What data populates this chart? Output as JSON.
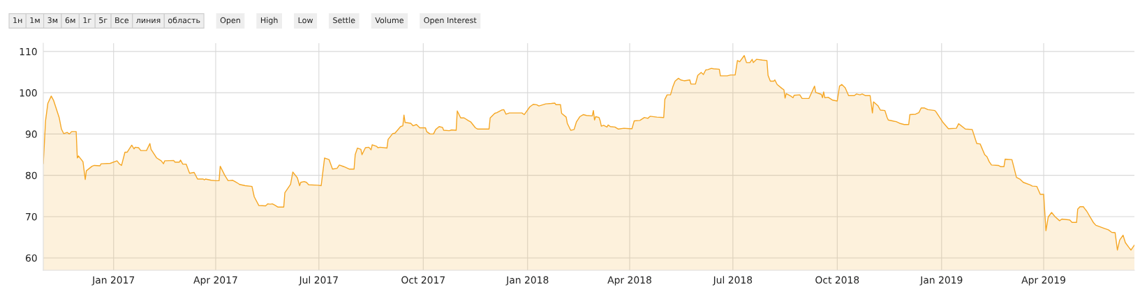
{
  "chart_data": {
    "type": "area",
    "annotations": [
      "1н",
      "1м",
      "3м",
      "6м",
      "1г",
      "5г",
      "Все",
      "линия",
      "область",
      "Open",
      "High",
      "Low",
      "Settle",
      "Volume",
      "Open Interest"
    ],
    "xlim": [
      "2016-10-31",
      "2019-06-20"
    ],
    "xticks": [
      {
        "value": "2017-01-01",
        "label": "Jan 2017"
      },
      {
        "value": "2017-04-01",
        "label": "Apr 2017"
      },
      {
        "value": "2017-07-01",
        "label": "Jul 2017"
      },
      {
        "value": "2017-10-01",
        "label": "Oct 2017"
      },
      {
        "value": "2018-01-01",
        "label": "Jan 2018"
      },
      {
        "value": "2018-04-01",
        "label": "Apr 2018"
      },
      {
        "value": "2018-07-01",
        "label": "Jul 2018"
      },
      {
        "value": "2018-10-01",
        "label": "Oct 2018"
      },
      {
        "value": "2019-01-01",
        "label": "Jan 2019"
      },
      {
        "value": "2019-04-01",
        "label": "Apr 2019"
      }
    ],
    "ylim": [
      57,
      112
    ],
    "yticks": [
      60,
      70,
      80,
      90,
      100,
      110
    ],
    "grid": true,
    "series": [
      {
        "color": "#f5a623",
        "x": [
          "2016-10-31",
          "2016-11-02",
          "2016-11-04",
          "2016-11-07",
          "2016-11-09",
          "2016-11-14",
          "2016-11-16",
          "2016-11-18",
          "2016-11-21",
          "2016-11-23",
          "2016-11-25",
          "2016-11-29",
          "2016-11-30",
          "2016-12-01",
          "2016-12-05",
          "2016-12-07",
          "2016-12-08",
          "2016-12-13",
          "2016-12-15",
          "2016-12-20",
          "2016-12-21",
          "2016-12-29",
          "2017-01-04",
          "2017-01-06",
          "2017-01-08",
          "2017-01-11",
          "2017-01-13",
          "2017-01-17",
          "2017-01-19",
          "2017-01-20",
          "2017-01-23",
          "2017-01-25",
          "2017-01-30",
          "2017-02-02",
          "2017-02-03",
          "2017-02-08",
          "2017-02-12",
          "2017-02-14",
          "2017-02-15",
          "2017-02-23",
          "2017-02-24",
          "2017-02-28",
          "2017-03-01",
          "2017-03-03",
          "2017-03-06",
          "2017-03-09",
          "2017-03-13",
          "2017-03-16",
          "2017-03-21",
          "2017-03-22",
          "2017-03-23",
          "2017-03-28",
          "2017-04-01",
          "2017-04-04",
          "2017-04-05",
          "2017-04-09",
          "2017-04-12",
          "2017-04-16",
          "2017-04-18",
          "2017-04-21",
          "2017-04-22",
          "2017-04-27",
          "2017-05-03",
          "2017-05-05",
          "2017-05-09",
          "2017-05-15",
          "2017-05-17",
          "2017-05-19",
          "2017-05-21",
          "2017-05-23",
          "2017-05-26",
          "2017-05-31",
          "2017-06-01",
          "2017-06-06",
          "2017-06-08",
          "2017-06-12",
          "2017-06-14",
          "2017-06-15",
          "2017-06-18",
          "2017-06-20",
          "2017-06-22",
          "2017-06-30",
          "2017-07-03",
          "2017-07-06",
          "2017-07-10",
          "2017-07-13",
          "2017-07-17",
          "2017-07-19",
          "2017-07-23",
          "2017-07-28",
          "2017-08-01",
          "2017-08-02",
          "2017-08-04",
          "2017-08-07",
          "2017-08-08",
          "2017-08-11",
          "2017-08-14",
          "2017-08-16",
          "2017-08-17",
          "2017-08-21",
          "2017-08-22",
          "2017-08-24",
          "2017-08-30",
          "2017-08-31",
          "2017-09-04",
          "2017-09-06",
          "2017-09-11",
          "2017-09-13",
          "2017-09-14",
          "2017-09-15",
          "2017-09-20",
          "2017-09-22",
          "2017-09-25",
          "2017-09-28",
          "2017-10-03",
          "2017-10-04",
          "2017-10-07",
          "2017-10-10",
          "2017-10-12",
          "2017-10-15",
          "2017-10-18",
          "2017-10-19",
          "2017-10-24",
          "2017-10-26",
          "2017-10-30",
          "2017-10-31",
          "2017-11-03",
          "2017-11-06",
          "2017-11-10",
          "2017-11-12",
          "2017-11-16",
          "2017-11-18",
          "2017-11-28",
          "2017-11-29",
          "2017-12-03",
          "2017-12-05",
          "2017-12-09",
          "2017-12-11",
          "2017-12-13",
          "2017-12-16",
          "2017-12-27",
          "2017-12-29",
          "2018-01-03",
          "2018-01-06",
          "2018-01-09",
          "2018-01-11",
          "2018-01-17",
          "2018-01-22",
          "2018-01-25",
          "2018-01-26",
          "2018-01-30",
          "2018-01-31",
          "2018-02-04",
          "2018-02-05",
          "2018-02-08",
          "2018-02-11",
          "2018-02-13",
          "2018-02-16",
          "2018-02-19",
          "2018-02-22",
          "2018-02-27",
          "2018-02-28",
          "2018-03-01",
          "2018-03-02",
          "2018-03-05",
          "2018-03-06",
          "2018-03-07",
          "2018-03-09",
          "2018-03-12",
          "2018-03-13",
          "2018-03-15",
          "2018-03-19",
          "2018-03-22",
          "2018-03-27",
          "2018-04-01",
          "2018-04-03",
          "2018-04-05",
          "2018-04-10",
          "2018-04-14",
          "2018-04-17",
          "2018-04-19",
          "2018-04-25",
          "2018-05-01",
          "2018-05-02",
          "2018-05-04",
          "2018-05-07",
          "2018-05-09",
          "2018-05-11",
          "2018-05-14",
          "2018-05-16",
          "2018-05-19",
          "2018-05-24",
          "2018-05-25",
          "2018-05-29",
          "2018-05-31",
          "2018-06-03",
          "2018-06-05",
          "2018-06-07",
          "2018-06-09",
          "2018-06-12",
          "2018-06-14",
          "2018-06-19",
          "2018-06-20",
          "2018-06-26",
          "2018-06-29",
          "2018-07-03",
          "2018-07-05",
          "2018-07-07",
          "2018-07-11",
          "2018-07-13",
          "2018-07-16",
          "2018-07-18",
          "2018-07-19",
          "2018-07-22",
          "2018-07-27",
          "2018-07-31",
          "2018-08-01",
          "2018-08-03",
          "2018-08-06",
          "2018-08-07",
          "2018-08-09",
          "2018-08-13",
          "2018-08-15",
          "2018-08-16",
          "2018-08-17",
          "2018-08-21",
          "2018-08-23",
          "2018-08-24",
          "2018-08-29",
          "2018-08-31",
          "2018-09-06",
          "2018-09-11",
          "2018-09-12",
          "2018-09-17",
          "2018-09-18",
          "2018-09-19",
          "2018-09-20",
          "2018-09-23",
          "2018-09-27",
          "2018-10-01",
          "2018-10-03",
          "2018-10-05",
          "2018-10-08",
          "2018-10-11",
          "2018-10-16",
          "2018-10-18",
          "2018-10-21",
          "2018-10-23",
          "2018-10-26",
          "2018-10-30",
          "2018-11-01",
          "2018-11-02",
          "2018-11-06",
          "2018-11-08",
          "2018-11-12",
          "2018-11-14",
          "2018-11-15",
          "2018-11-20",
          "2018-11-22",
          "2018-11-25",
          "2018-11-29",
          "2018-12-03",
          "2018-12-04",
          "2018-12-09",
          "2018-12-12",
          "2018-12-14",
          "2018-12-17",
          "2018-12-20",
          "2018-12-26",
          "2018-12-27",
          "2019-01-02",
          "2019-01-07",
          "2019-01-14",
          "2019-01-16",
          "2019-01-22",
          "2019-01-28",
          "2019-02-01",
          "2019-02-04",
          "2019-02-08",
          "2019-02-10",
          "2019-02-12",
          "2019-02-14",
          "2019-02-20",
          "2019-02-22",
          "2019-02-25",
          "2019-02-26",
          "2019-03-04",
          "2019-03-08",
          "2019-03-11",
          "2019-03-14",
          "2019-03-20",
          "2019-03-22",
          "2019-03-26",
          "2019-03-29",
          "2019-04-01",
          "2019-04-03",
          "2019-04-05",
          "2019-04-08",
          "2019-04-11",
          "2019-04-15",
          "2019-04-17",
          "2019-04-24",
          "2019-04-26",
          "2019-04-30",
          "2019-05-01",
          "2019-05-03",
          "2019-05-06",
          "2019-05-07",
          "2019-05-09",
          "2019-05-12",
          "2019-05-15",
          "2019-05-17",
          "2019-05-22",
          "2019-05-24",
          "2019-05-28",
          "2019-05-31",
          "2019-06-03",
          "2019-06-05",
          "2019-06-07",
          "2019-06-10",
          "2019-06-12",
          "2019-06-15",
          "2019-06-17",
          "2019-06-20"
        ],
        "values": [
          82.8,
          93.2,
          97.4,
          99.2,
          98.2,
          94.0,
          91.2,
          90.1,
          90.4,
          90.0,
          90.6,
          90.6,
          84.2,
          84.7,
          83.3,
          79.0,
          81.1,
          82.2,
          82.4,
          82.3,
          82.8,
          82.9,
          83.5,
          82.8,
          82.4,
          85.6,
          85.6,
          87.3,
          86.4,
          86.8,
          86.7,
          86.0,
          86.0,
          87.7,
          86.3,
          84.2,
          83.5,
          82.8,
          83.5,
          83.6,
          83.2,
          83.2,
          83.7,
          82.7,
          82.7,
          80.5,
          80.7,
          79.1,
          79.1,
          78.9,
          79.1,
          78.8,
          78.7,
          78.7,
          82.2,
          80.0,
          78.7,
          78.8,
          78.5,
          78.0,
          77.8,
          77.5,
          77.3,
          74.8,
          72.7,
          72.6,
          73.1,
          73.0,
          73.1,
          72.8,
          72.3,
          72.3,
          75.8,
          77.8,
          80.8,
          79.4,
          77.5,
          78.3,
          78.5,
          78.3,
          77.7,
          77.6,
          77.5,
          84.2,
          83.8,
          81.5,
          81.7,
          82.5,
          82.1,
          81.5,
          81.5,
          85.0,
          86.6,
          86.3,
          85.0,
          86.7,
          86.8,
          86.2,
          87.4,
          87.0,
          86.7,
          86.8,
          86.6,
          88.7,
          90.1,
          90.2,
          91.8,
          92.0,
          94.6,
          92.8,
          92.6,
          92.0,
          92.3,
          91.5,
          91.5,
          90.6,
          90.0,
          90.0,
          91.1,
          91.8,
          91.6,
          90.9,
          90.8,
          91.0,
          90.9,
          95.6,
          93.9,
          93.9,
          93.2,
          92.9,
          91.5,
          91.2,
          91.2,
          93.9,
          95.0,
          95.2,
          95.8,
          95.9,
          94.8,
          95.1,
          95.1,
          94.7,
          96.6,
          97.2,
          97.1,
          96.8,
          97.3,
          97.4,
          97.5,
          97.1,
          97.1,
          95.0,
          94.1,
          92.6,
          90.9,
          91.1,
          92.9,
          94.2,
          94.7,
          94.5,
          94.4,
          95.7,
          93.4,
          94.2,
          94.0,
          93.2,
          91.9,
          92.1,
          91.7,
          92.2,
          91.8,
          91.7,
          91.2,
          91.4,
          91.3,
          91.3,
          93.2,
          93.3,
          94.0,
          93.8,
          94.3,
          94.1,
          94.0,
          98.4,
          99.5,
          99.5,
          101.4,
          102.8,
          103.5,
          103.1,
          102.9,
          103.1,
          102.1,
          102.1,
          104.2,
          104.9,
          104.4,
          105.5,
          105.6,
          105.9,
          105.8,
          105.7,
          104.1,
          104.1,
          104.3,
          104.3,
          107.8,
          107.5,
          109.0,
          107.3,
          107.3,
          108.1,
          107.3,
          108.1,
          107.9,
          107.8,
          104.2,
          102.8,
          102.8,
          103.1,
          102.0,
          101.1,
          100.7,
          98.7,
          99.8,
          99.2,
          98.8,
          99.4,
          99.5,
          98.6,
          98.6,
          101.6,
          100.1,
          99.6,
          98.8,
          100.2,
          98.8,
          98.9,
          98.2,
          98.0,
          101.6,
          102.0,
          101.2,
          99.3,
          99.3,
          99.7,
          99.5,
          99.7,
          99.3,
          99.3,
          95.1,
          97.8,
          96.8,
          95.8,
          95.7,
          94.0,
          93.4,
          93.1,
          93.0,
          92.6,
          92.3,
          92.3,
          94.7,
          94.8,
          95.2,
          96.3,
          96.3,
          95.9,
          95.7,
          95.4,
          92.9,
          91.3,
          91.4,
          92.5,
          91.2,
          91.1,
          87.7,
          87.6,
          85.0,
          84.5,
          83.3,
          82.5,
          82.4,
          82.1,
          82.1,
          83.9,
          83.8,
          79.5,
          79.1,
          78.3,
          77.7,
          77.4,
          77.3,
          75.4,
          75.4,
          66.6,
          69.9,
          71.0,
          70.0,
          69.0,
          69.4,
          69.2,
          68.6,
          68.6,
          71.8,
          72.4,
          72.4,
          72.0,
          71.3,
          69.9,
          68.5,
          67.9,
          67.4,
          67.2,
          66.8,
          66.2,
          66.1,
          61.9,
          64.3,
          65.5,
          63.7,
          62.6,
          61.9,
          63.1
        ]
      }
    ]
  }
}
